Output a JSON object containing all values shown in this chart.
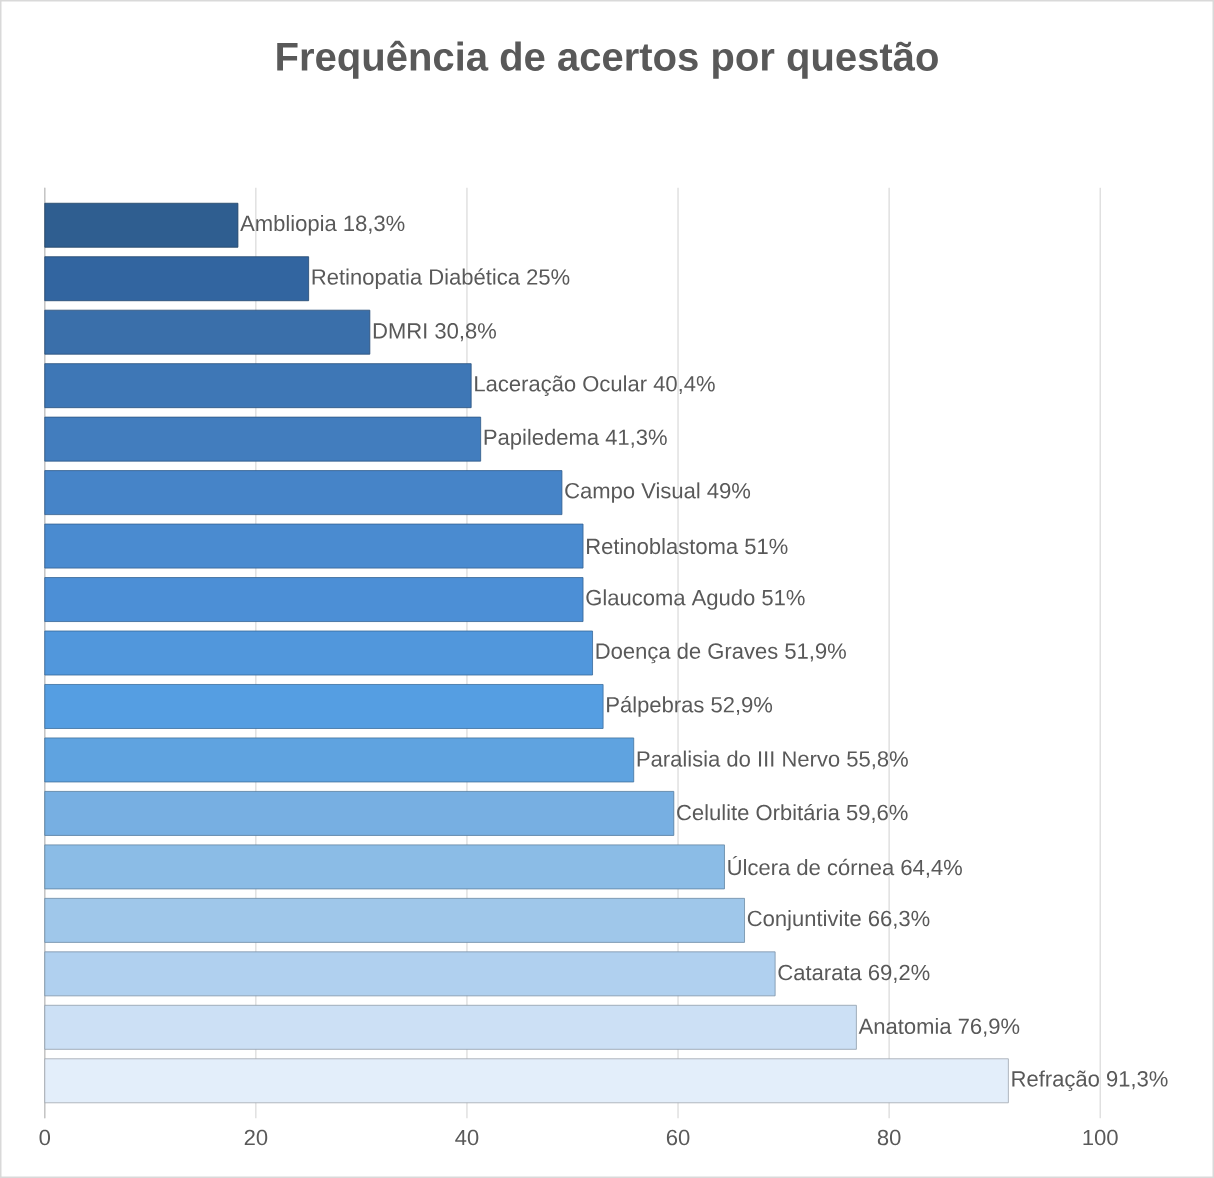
{
  "chart_data": {
    "type": "bar",
    "orientation": "horizontal",
    "title": "Frequência de acertos por questão",
    "categories": [
      null,
      null,
      null,
      null,
      null,
      null,
      null,
      null,
      null,
      null,
      null,
      null,
      null,
      null,
      null,
      null,
      null
    ],
    "values": [
      18.3,
      25,
      30.8,
      40.4,
      41.3,
      49,
      51,
      51,
      51.9,
      52.9,
      55.8,
      59.6,
      64.4,
      66.3,
      69.2,
      76.9,
      91.3
    ],
    "value_labels": [
      "Ambliopia 18,3%",
      "Retinopatia Diabética 25%",
      "DMRI 30,8%",
      "Laceração Ocular 40,4%",
      "Papiledema 41,3%",
      "Campo Visual 49%",
      "Retinoblastoma 51%",
      "Glaucoma Agudo 51%",
      "Doença de Graves 51,9%",
      "Pálpebras 52,9%",
      "Paralisia do III Nervo 55,8%",
      "Celulite Orbitária 59,6%",
      "Úlcera de córnea 64,4%",
      "Conjuntivite 66,3%",
      "Catarata 69,2%",
      "Anatomia 76,9%",
      "Refração 91,3%"
    ],
    "colors": [
      "#2f5e90",
      "#3265a0",
      "#3a6faa",
      "#3e77b6",
      "#427dbe",
      "#4684c8",
      "#4a8bd0",
      "#4c8fd6",
      "#5197dc",
      "#559ee2",
      "#5fa3e0",
      "#77afe2",
      "#8bbce6",
      "#9fc7ea",
      "#b0d0ef",
      "#cce0f5",
      "#e3eefa"
    ],
    "xlim": [
      0,
      100
    ],
    "xticks": [
      0,
      20,
      40,
      60,
      80,
      100
    ],
    "grid": "x"
  }
}
